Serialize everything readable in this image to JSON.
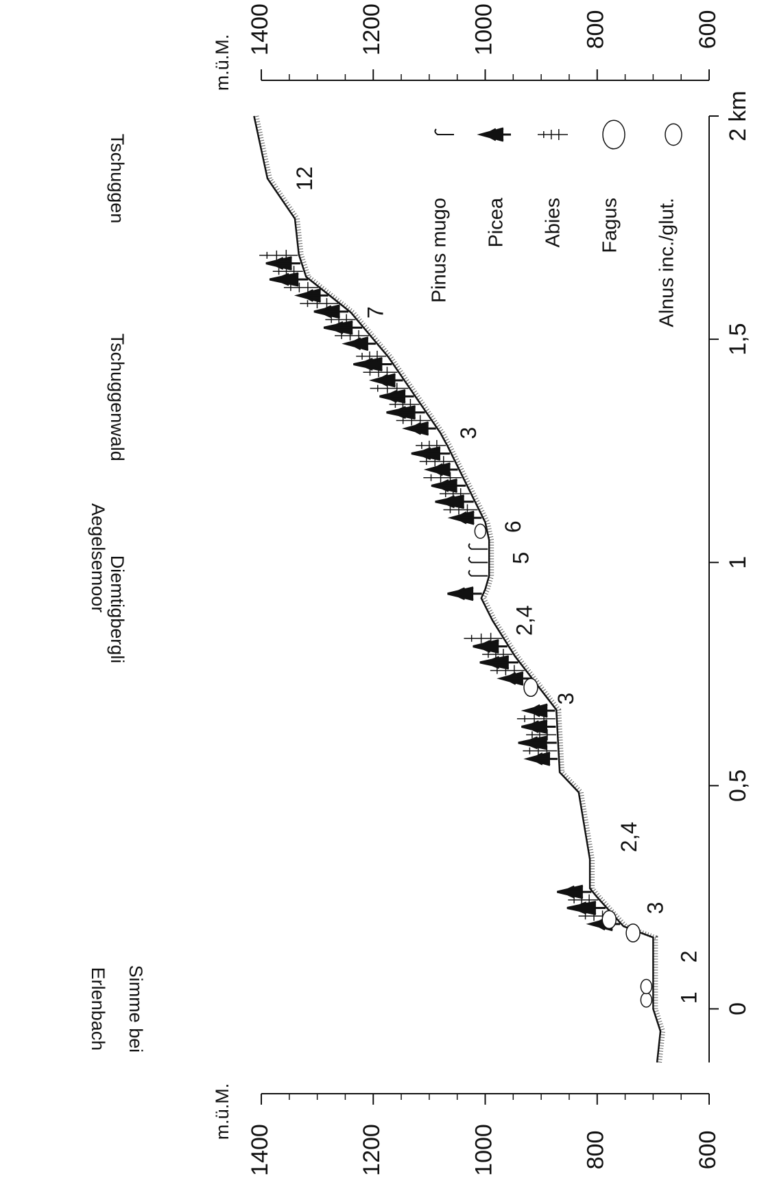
{
  "chart_data": {
    "type": "line",
    "x": [
      -0.12,
      -0.05,
      0,
      0.16,
      0.185,
      0.25,
      0.27,
      0.335,
      0.485,
      0.53,
      0.67,
      0.79,
      0.87,
      0.92,
      0.94,
      0.97,
      1.05,
      1.09,
      1.26,
      1.29,
      1.46,
      1.56,
      1.64,
      1.69,
      1.77,
      1.86,
      2.0
    ],
    "values": [
      693,
      687,
      700,
      700,
      753,
      800,
      813,
      813,
      833,
      867,
      873,
      947,
      987,
      1007,
      1000,
      993,
      993,
      1000,
      1067,
      1080,
      1173,
      1240,
      1320,
      1333,
      1340,
      1389,
      1413
    ],
    "color": "#111111",
    "xlim": [
      -0.19,
      2.08
    ],
    "xticks": [
      0,
      {
        "value": 0.5,
        "label": "0,5"
      },
      1,
      {
        "value": 1.5,
        "label": "1,5"
      },
      {
        "value": 2,
        "label": "2 km"
      }
    ],
    "ylim": [
      600,
      1400
    ],
    "yticks": [
      600,
      800,
      1000,
      1200,
      1400
    ],
    "yminorticks": [
      650,
      700,
      750,
      850,
      900,
      950,
      1050,
      1100,
      1150,
      1250,
      1300,
      1350
    ],
    "y_label": "m.ü.M.",
    "places": [
      {
        "lines": [
          "Simme bei",
          "Erlenbach"
        ],
        "x": 0
      },
      {
        "lines": [
          "Diemtigbergli"
        ],
        "x": 0.895
      },
      {
        "lines": [
          "Aegelsemoor"
        ],
        "x": 1.01
      },
      {
        "lines": [
          "Tschuggenwald"
        ],
        "x": 1.37
      },
      {
        "lines": [
          "Tschuggen"
        ],
        "x": 1.86
      }
    ],
    "annotations": [
      {
        "text": "1",
        "x": 0.025,
        "y": 633
      },
      {
        "text": "2",
        "x": 0.117,
        "y": 633
      },
      {
        "text": "3",
        "x": 0.226,
        "y": 693
      },
      {
        "text": "2,4",
        "x": 0.385,
        "y": 740
      },
      {
        "text": "3",
        "x": 0.695,
        "y": 853
      },
      {
        "text": "2,4",
        "x": 0.87,
        "y": 927
      },
      {
        "text": "5",
        "x": 1.01,
        "y": 933
      },
      {
        "text": "6",
        "x": 1.08,
        "y": 947
      },
      {
        "text": "3",
        "x": 1.29,
        "y": 1027
      },
      {
        "text": "7",
        "x": 1.56,
        "y": 1193
      },
      {
        "text": "12",
        "x": 1.86,
        "y": 1320
      }
    ],
    "legend": [
      "Pinus mugo",
      "Picea",
      "Abies",
      "Fagus",
      "Alnus inc./glut."
    ]
  }
}
